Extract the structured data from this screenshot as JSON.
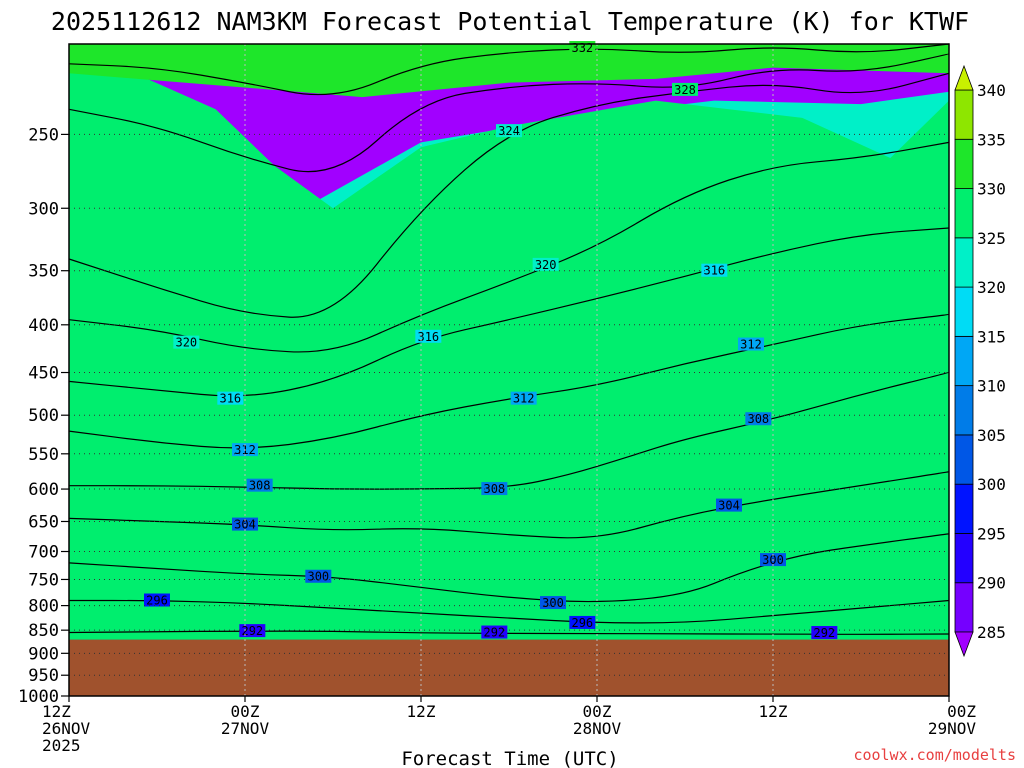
{
  "chart_data": {
    "type": "heatmap",
    "title": "2025112612 NAM3KM Forecast Potential Temperature (K) for KTWF",
    "xlabel": "Forecast Time (UTC)",
    "ylabel": "",
    "y_levels_hpa": [
      250,
      300,
      350,
      400,
      450,
      500,
      550,
      600,
      650,
      700,
      750,
      800,
      850,
      900,
      950,
      1000
    ],
    "y_scale": "log-pressure",
    "ylim": [
      1000,
      200
    ],
    "x_ticks": [
      {
        "h": 0,
        "line1": "12Z",
        "line2": "26NOV",
        "line3": "2025"
      },
      {
        "h": 12,
        "line1": "00Z",
        "line2": "27NOV",
        "line3": ""
      },
      {
        "h": 24,
        "line1": "12Z",
        "line2": "",
        "line3": ""
      },
      {
        "h": 36,
        "line1": "00Z",
        "line2": "28NOV",
        "line3": ""
      },
      {
        "h": 48,
        "line1": "12Z",
        "line2": "",
        "line3": ""
      },
      {
        "h": 60,
        "line1": "00Z",
        "line2": "29NOV",
        "line3": ""
      }
    ],
    "xlim_hours": [
      0,
      60
    ],
    "grid": true,
    "surface_pressure_hpa": 870,
    "colorbar": {
      "levels": [
        285,
        290,
        295,
        300,
        305,
        310,
        315,
        320,
        325,
        330,
        335,
        340
      ],
      "colors": [
        "#a100ff",
        "#7500ff",
        "#2300ff",
        "#0013ff",
        "#0057e6",
        "#007ce8",
        "#00a7f5",
        "#00dcf5",
        "#00f0c8",
        "#00ee6e",
        "#1ee62a",
        "#8ee600",
        "#c8f000"
      ],
      "placement": "right"
    },
    "series": [
      {
        "value": 292,
        "label": "292",
        "labels_at": [
          [
            12.5,
            852
          ],
          [
            29,
            855
          ],
          [
            51.5,
            856
          ]
        ],
        "points": [
          [
            0,
            855
          ],
          [
            6,
            853
          ],
          [
            12,
            852
          ],
          [
            18,
            852
          ],
          [
            24,
            856
          ],
          [
            30,
            857
          ],
          [
            36,
            857
          ],
          [
            42,
            858
          ],
          [
            48,
            858
          ],
          [
            54,
            859
          ],
          [
            60,
            858
          ]
        ]
      },
      {
        "value": 296,
        "label": "296",
        "labels_at": [
          [
            6,
            790
          ],
          [
            35,
            835
          ]
        ],
        "points": [
          [
            0,
            790
          ],
          [
            6,
            790
          ],
          [
            12,
            795
          ],
          [
            18,
            805
          ],
          [
            24,
            815
          ],
          [
            30,
            825
          ],
          [
            36,
            835
          ],
          [
            42,
            835
          ],
          [
            48,
            820
          ],
          [
            54,
            805
          ],
          [
            60,
            790
          ]
        ]
      },
      {
        "value": 300,
        "label": "300",
        "labels_at": [
          [
            17,
            745
          ],
          [
            33,
            795
          ],
          [
            48,
            715
          ]
        ],
        "points": [
          [
            0,
            720
          ],
          [
            6,
            730
          ],
          [
            12,
            740
          ],
          [
            18,
            745
          ],
          [
            24,
            765
          ],
          [
            30,
            785
          ],
          [
            36,
            795
          ],
          [
            42,
            780
          ],
          [
            46,
            735
          ],
          [
            50,
            705
          ],
          [
            54,
            690
          ],
          [
            60,
            670
          ]
        ]
      },
      {
        "value": 304,
        "label": "304",
        "labels_at": [
          [
            12,
            655
          ],
          [
            45,
            625
          ]
        ],
        "points": [
          [
            0,
            645
          ],
          [
            6,
            650
          ],
          [
            12,
            655
          ],
          [
            18,
            665
          ],
          [
            24,
            660
          ],
          [
            30,
            672
          ],
          [
            36,
            680
          ],
          [
            42,
            640
          ],
          [
            48,
            615
          ],
          [
            54,
            595
          ],
          [
            60,
            575
          ]
        ]
      },
      {
        "value": 308,
        "label": "308",
        "labels_at": [
          [
            13,
            595
          ],
          [
            29,
            600
          ],
          [
            47,
            505
          ]
        ],
        "points": [
          [
            0,
            595
          ],
          [
            6,
            595
          ],
          [
            12,
            597
          ],
          [
            18,
            600
          ],
          [
            24,
            600
          ],
          [
            30,
            598
          ],
          [
            34,
            580
          ],
          [
            38,
            555
          ],
          [
            42,
            530
          ],
          [
            48,
            505
          ],
          [
            54,
            475
          ],
          [
            60,
            450
          ]
        ]
      },
      {
        "value": 312,
        "label": "312",
        "labels_at": [
          [
            12,
            545
          ],
          [
            31,
            480
          ],
          [
            46.5,
            420
          ]
        ],
        "points": [
          [
            0,
            520
          ],
          [
            6,
            535
          ],
          [
            12,
            545
          ],
          [
            18,
            530
          ],
          [
            24,
            500
          ],
          [
            30,
            480
          ],
          [
            36,
            465
          ],
          [
            42,
            440
          ],
          [
            48,
            420
          ],
          [
            54,
            400
          ],
          [
            60,
            390
          ]
        ]
      },
      {
        "value": 316,
        "label": "316",
        "labels_at": [
          [
            11,
            480
          ],
          [
            24.5,
            412
          ],
          [
            44,
            350
          ]
        ],
        "points": [
          [
            0,
            460
          ],
          [
            6,
            470
          ],
          [
            12,
            480
          ],
          [
            18,
            460
          ],
          [
            24,
            415
          ],
          [
            30,
            395
          ],
          [
            36,
            375
          ],
          [
            42,
            355
          ],
          [
            48,
            335
          ],
          [
            54,
            320
          ],
          [
            60,
            315
          ]
        ]
      },
      {
        "value": 320,
        "label": "320",
        "labels_at": [
          [
            8,
            418
          ],
          [
            32.5,
            345
          ]
        ],
        "points": [
          [
            0,
            395
          ],
          [
            6,
            405
          ],
          [
            12,
            425
          ],
          [
            18,
            430
          ],
          [
            24,
            390
          ],
          [
            30,
            360
          ],
          [
            36,
            330
          ],
          [
            42,
            290
          ],
          [
            48,
            270
          ],
          [
            54,
            265
          ],
          [
            60,
            255
          ]
        ]
      },
      {
        "value": 324,
        "label": "324",
        "labels_at": [
          [
            30,
            248
          ]
        ],
        "points": [
          [
            0,
            340
          ],
          [
            6,
            365
          ],
          [
            12,
            390
          ],
          [
            18,
            395
          ],
          [
            24,
            300
          ],
          [
            30,
            248
          ],
          [
            36,
            232
          ],
          [
            42,
            225
          ],
          [
            48,
            220
          ],
          [
            54,
            228
          ],
          [
            60,
            215
          ]
        ]
      },
      {
        "value": 328,
        "label": "328",
        "labels_at": [
          [
            42,
            224
          ]
        ],
        "points": [
          [
            0,
            235
          ],
          [
            6,
            245
          ],
          [
            12,
            265
          ],
          [
            18,
            280
          ],
          [
            24,
            230
          ],
          [
            30,
            222
          ],
          [
            36,
            220
          ],
          [
            42,
            224
          ],
          [
            48,
            212
          ],
          [
            54,
            215
          ],
          [
            60,
            205
          ]
        ]
      },
      {
        "value": 332,
        "label": "332",
        "labels_at": [
          [
            35,
            202
          ]
        ],
        "points": [
          [
            0,
            210
          ],
          [
            6,
            212
          ],
          [
            12,
            220
          ],
          [
            18,
            230
          ],
          [
            24,
            210
          ],
          [
            30,
            204
          ],
          [
            36,
            202
          ],
          [
            42,
            205
          ],
          [
            48,
            201
          ],
          [
            54,
            205
          ],
          [
            60,
            200
          ]
        ]
      }
    ],
    "fill_regions": [
      {
        "min_theta": 290,
        "points": [
          [
            0,
            870
          ],
          [
            0,
            805
          ],
          [
            12,
            815
          ],
          [
            24,
            835
          ],
          [
            36,
            850
          ],
          [
            44,
            848
          ],
          [
            50,
            820
          ],
          [
            56,
            800
          ],
          [
            60,
            790
          ],
          [
            60,
            870
          ]
        ]
      },
      {
        "min_theta": 295,
        "points": [
          [
            0,
            870
          ],
          [
            0,
            750
          ],
          [
            12,
            760
          ],
          [
            24,
            785
          ],
          [
            36,
            812
          ],
          [
            44,
            800
          ],
          [
            48,
            760
          ],
          [
            54,
            725
          ],
          [
            60,
            705
          ],
          [
            60,
            870
          ]
        ]
      },
      {
        "min_theta": 300,
        "points": [
          [
            0,
            870
          ],
          [
            0,
            675
          ],
          [
            12,
            700
          ],
          [
            24,
            720
          ],
          [
            36,
            735
          ],
          [
            42,
            712
          ],
          [
            48,
            660
          ],
          [
            54,
            625
          ],
          [
            60,
            600
          ],
          [
            60,
            870
          ]
        ]
      },
      {
        "min_theta": 305,
        "points": [
          [
            0,
            870
          ],
          [
            0,
            550
          ],
          [
            12,
            555
          ],
          [
            24,
            565
          ],
          [
            36,
            575
          ],
          [
            42,
            530
          ],
          [
            48,
            495
          ],
          [
            54,
            460
          ],
          [
            60,
            430
          ],
          [
            60,
            870
          ]
        ]
      },
      {
        "min_theta": 310,
        "points": [
          [
            0,
            870
          ],
          [
            0,
            490
          ],
          [
            12,
            505
          ],
          [
            24,
            470
          ],
          [
            36,
            425
          ],
          [
            42,
            400
          ],
          [
            48,
            370
          ],
          [
            54,
            345
          ],
          [
            60,
            335
          ],
          [
            60,
            870
          ]
        ]
      },
      {
        "min_theta": 315,
        "points": [
          [
            0,
            870
          ],
          [
            0,
            355
          ],
          [
            12,
            395
          ],
          [
            24,
            360
          ],
          [
            32,
            320
          ],
          [
            38,
            282
          ],
          [
            44,
            265
          ],
          [
            50,
            262
          ],
          [
            56,
            270
          ],
          [
            60,
            250
          ],
          [
            60,
            870
          ]
        ]
      },
      {
        "min_theta": 320,
        "points": [
          [
            0,
            870
          ],
          [
            0,
            255
          ],
          [
            10,
            275
          ],
          [
            16,
            300
          ],
          [
            24,
            255
          ],
          [
            34,
            240
          ],
          [
            44,
            230
          ],
          [
            54,
            232
          ],
          [
            60,
            225
          ],
          [
            60,
            870
          ]
        ]
      },
      {
        "min_theta": 325,
        "points": [
          [
            0,
            870
          ],
          [
            0,
            200
          ],
          [
            10,
            235
          ],
          [
            14,
            270
          ],
          [
            18,
            300
          ],
          [
            24,
            258
          ],
          [
            30,
            245
          ],
          [
            40,
            230
          ],
          [
            50,
            240
          ],
          [
            56,
            265
          ],
          [
            60,
            230
          ],
          [
            60,
            870
          ]
        ]
      },
      {
        "min_theta": 330,
        "points": [
          [
            0,
            870
          ],
          [
            0,
            200
          ],
          [
            60,
            200
          ],
          [
            60,
            215
          ],
          [
            48,
            212
          ],
          [
            40,
            218
          ],
          [
            30,
            220
          ],
          [
            20,
            228
          ],
          [
            0,
            215
          ],
          [
            0,
            870
          ]
        ]
      }
    ]
  },
  "credit": "coolwx.com/modelts"
}
